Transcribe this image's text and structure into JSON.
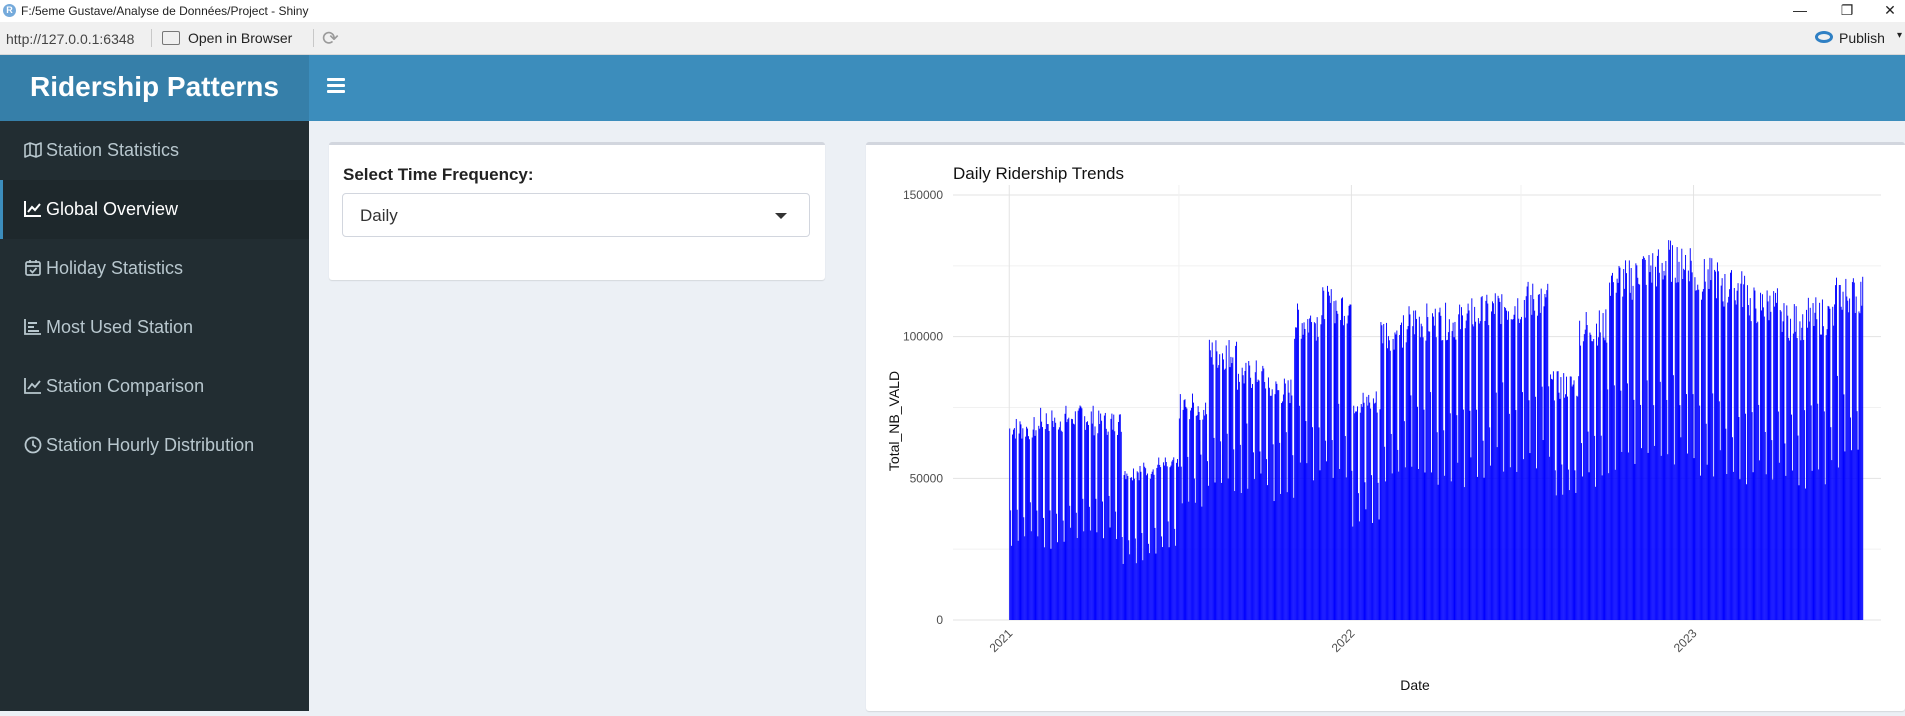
{
  "window": {
    "title": "F:/5eme Gustave/Analyse de Données/Project - Shiny",
    "app_icon_letter": "R",
    "minimize": "—",
    "restore": "❐",
    "close": "✕"
  },
  "toolbar": {
    "url": "http://127.0.0.1:6348",
    "open_in_browser": "Open in Browser",
    "refresh_icon": "⟳",
    "publish": "Publish",
    "publish_caret": "▾"
  },
  "header": {
    "title": "Ridership Patterns"
  },
  "sidebar": {
    "items": [
      {
        "label": "Station Statistics",
        "icon": "map-icon",
        "active": false
      },
      {
        "label": "Global Overview",
        "icon": "line-chart-icon",
        "active": true
      },
      {
        "label": "Holiday Statistics",
        "icon": "calendar-check-icon",
        "active": false
      },
      {
        "label": "Most Used Station",
        "icon": "bar-chart-icon",
        "active": false
      },
      {
        "label": "Station Comparison",
        "icon": "line-chart-icon",
        "active": false
      },
      {
        "label": "Station Hourly Distribution",
        "icon": "clock-icon",
        "active": false
      }
    ]
  },
  "controls": {
    "frequency_label": "Select Time Frequency:",
    "frequency_value": "Daily"
  },
  "colors": {
    "header": "#3c8dbc",
    "logo": "#367fa9",
    "sidebar": "#222d32",
    "series": "#0000ff"
  },
  "chart_data": {
    "type": "bar",
    "title": "Daily Ridership Trends",
    "xlabel": "Date",
    "ylabel": "Total_NB_VALD",
    "x_ticks": [
      "2021",
      "2022",
      "2023"
    ],
    "x_range": [
      "2021-01-01",
      "2023-06-30"
    ],
    "ylim": [
      0,
      150000
    ],
    "y_ticks": [
      0,
      50000,
      100000,
      150000
    ],
    "y_tick_labels": [
      "0",
      "50000",
      "100000",
      "150000"
    ],
    "grid": true,
    "series_color": "#0000ff",
    "monthly_weekday_peak": [
      72000,
      75000,
      76000,
      74000,
      56000,
      58000,
      80000,
      100000,
      92000,
      86000,
      112000,
      118000,
      82000,
      108000,
      112000,
      112000,
      115000,
      118000,
      120000,
      88000,
      110000,
      128000,
      132000,
      135000,
      128000,
      124000,
      118000,
      112000,
      114000,
      122000
    ],
    "monthly_weekend_low": [
      30000,
      28000,
      32000,
      33000,
      23000,
      25000,
      42000,
      52000,
      50000,
      48000,
      58000,
      55000,
      38000,
      52000,
      58000,
      56000,
      55000,
      60000,
      62000,
      45000,
      52000,
      60000,
      62000,
      62000,
      58000,
      56000,
      55000,
      54000,
      55000,
      62000
    ]
  }
}
